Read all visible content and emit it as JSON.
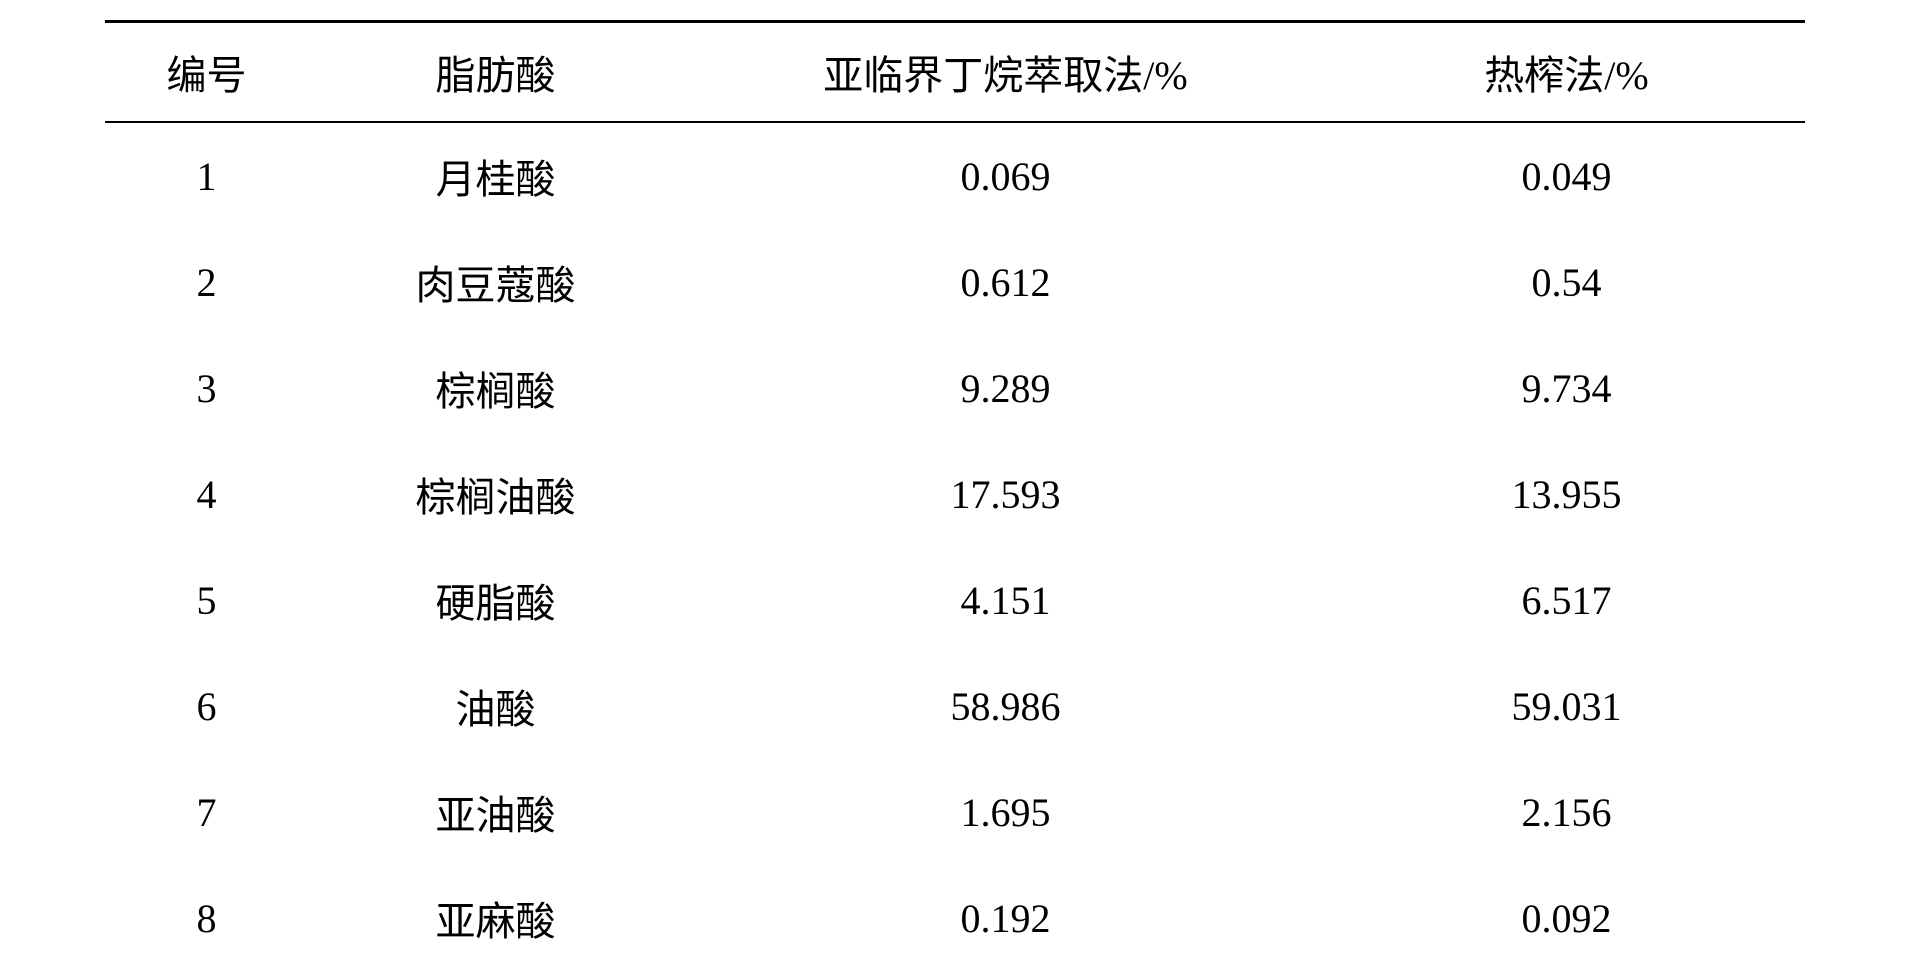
{
  "table": {
    "columns": [
      {
        "label": "编号",
        "class": "col-index"
      },
      {
        "label": "脂肪酸",
        "class": "col-name"
      },
      {
        "label": "亚临界丁烷萃取法/%",
        "class": "col-method1"
      },
      {
        "label": "热榨法/%",
        "class": "col-method2"
      }
    ],
    "rows": [
      {
        "index": "1",
        "name": "月桂酸",
        "method1": "0.069",
        "method2": "0.049"
      },
      {
        "index": "2",
        "name": "肉豆蔻酸",
        "method1": "0.612",
        "method2": "0.54"
      },
      {
        "index": "3",
        "name": "棕榈酸",
        "method1": "9.289",
        "method2": "9.734"
      },
      {
        "index": "4",
        "name": "棕榈油酸",
        "method1": "17.593",
        "method2": "13.955"
      },
      {
        "index": "5",
        "name": "硬脂酸",
        "method1": "4.151",
        "method2": "6.517"
      },
      {
        "index": "6",
        "name": "油酸",
        "method1": "58.986",
        "method2": "59.031"
      },
      {
        "index": "7",
        "name": "亚油酸",
        "method1": "1.695",
        "method2": "2.156"
      },
      {
        "index": "8",
        "name": "亚麻酸",
        "method1": "0.192",
        "method2": "0.092"
      }
    ],
    "styling": {
      "background_color": "#ffffff",
      "text_color": "#000000",
      "border_top_width": 3,
      "header_border_bottom_width": 2,
      "font_size": 40,
      "font_family": "SimSun",
      "cell_padding_vertical": 24,
      "header_padding_vertical": 20,
      "column_widths_percent": [
        12,
        22,
        38,
        28
      ]
    }
  }
}
